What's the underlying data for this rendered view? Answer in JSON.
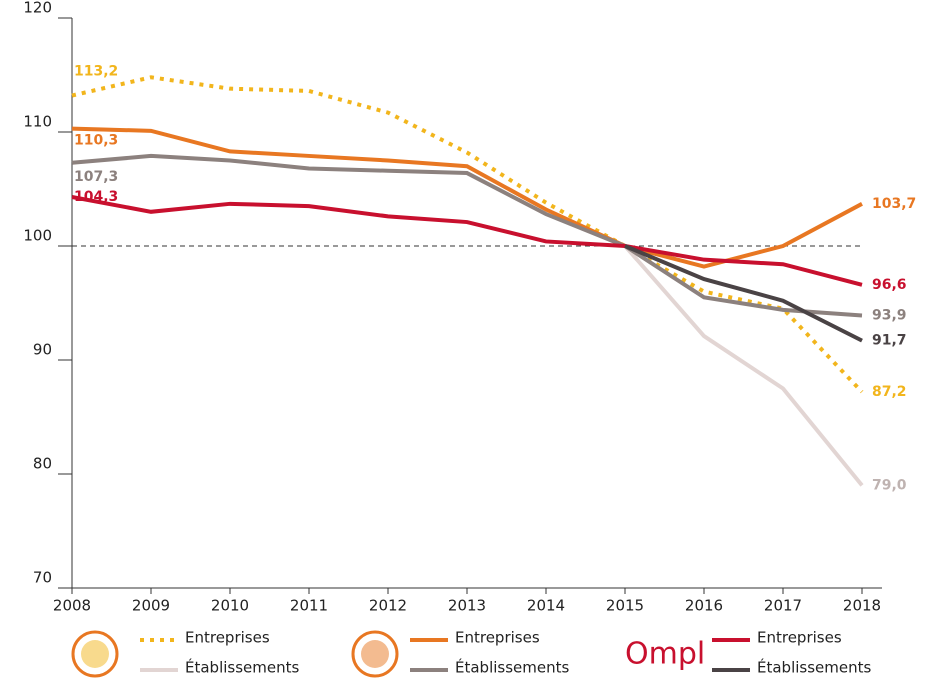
{
  "chart_data": {
    "type": "line",
    "x": [
      2008,
      2009,
      2010,
      2011,
      2012,
      2013,
      2014,
      2015,
      2016,
      2017,
      2018
    ],
    "xlim": [
      2008,
      2018
    ],
    "xticks": [
      2008,
      2009,
      2010,
      2011,
      2012,
      2013,
      2014,
      2015,
      2016,
      2017,
      2018
    ],
    "ylim": [
      70,
      120
    ],
    "yticks": [
      70,
      80,
      90,
      100,
      110,
      120
    ],
    "reference_line": 100,
    "logo_text": "Ompl",
    "series": [
      {
        "name": "Entreprises",
        "color": "#f2b51c",
        "dashed": true,
        "values": [
          113.2,
          114.8,
          113.8,
          113.6,
          111.7,
          108.2,
          103.8,
          100,
          96.0,
          94.5,
          87.2
        ],
        "value_labels": [
          "113,2",
          null,
          null,
          null,
          null,
          null,
          null,
          null,
          null,
          null,
          "87,2"
        ]
      },
      {
        "name": "Établissements",
        "color": "#e2d5d3",
        "values": [
          null,
          null,
          null,
          null,
          null,
          null,
          null,
          100,
          92.1,
          87.5,
          79.0
        ],
        "value_labels": [
          null,
          null,
          null,
          null,
          null,
          null,
          null,
          null,
          null,
          null,
          "79,0"
        ]
      },
      {
        "name": "Entreprises",
        "color": "#e87722",
        "values": [
          110.3,
          110.1,
          108.3,
          107.9,
          107.5,
          107.0,
          103.2,
          100,
          98.2,
          100.0,
          103.7
        ],
        "value_labels": [
          "110,3",
          null,
          null,
          null,
          null,
          null,
          null,
          null,
          null,
          null,
          "103,7"
        ]
      },
      {
        "name": "Établissements",
        "color": "#8c817e",
        "values": [
          107.3,
          107.9,
          107.5,
          106.8,
          106.6,
          106.4,
          102.8,
          100,
          95.5,
          94.4,
          93.9
        ],
        "value_labels": [
          "107,3",
          null,
          null,
          null,
          null,
          null,
          null,
          null,
          null,
          null,
          "93,9"
        ]
      },
      {
        "name": "Entreprises",
        "color": "#c8102e",
        "values": [
          104.3,
          103.0,
          103.7,
          103.5,
          102.6,
          102.1,
          100.4,
          100,
          98.8,
          98.4,
          96.6
        ],
        "value_labels": [
          "104,3",
          null,
          null,
          null,
          null,
          null,
          null,
          null,
          null,
          null,
          "96,6"
        ]
      },
      {
        "name": "Établissements",
        "color": "#4a4345",
        "values": [
          null,
          null,
          null,
          null,
          null,
          null,
          null,
          100,
          97.1,
          95.2,
          91.7
        ],
        "value_labels": [
          null,
          null,
          null,
          null,
          null,
          null,
          null,
          null,
          null,
          null,
          "91,7"
        ]
      }
    ]
  }
}
